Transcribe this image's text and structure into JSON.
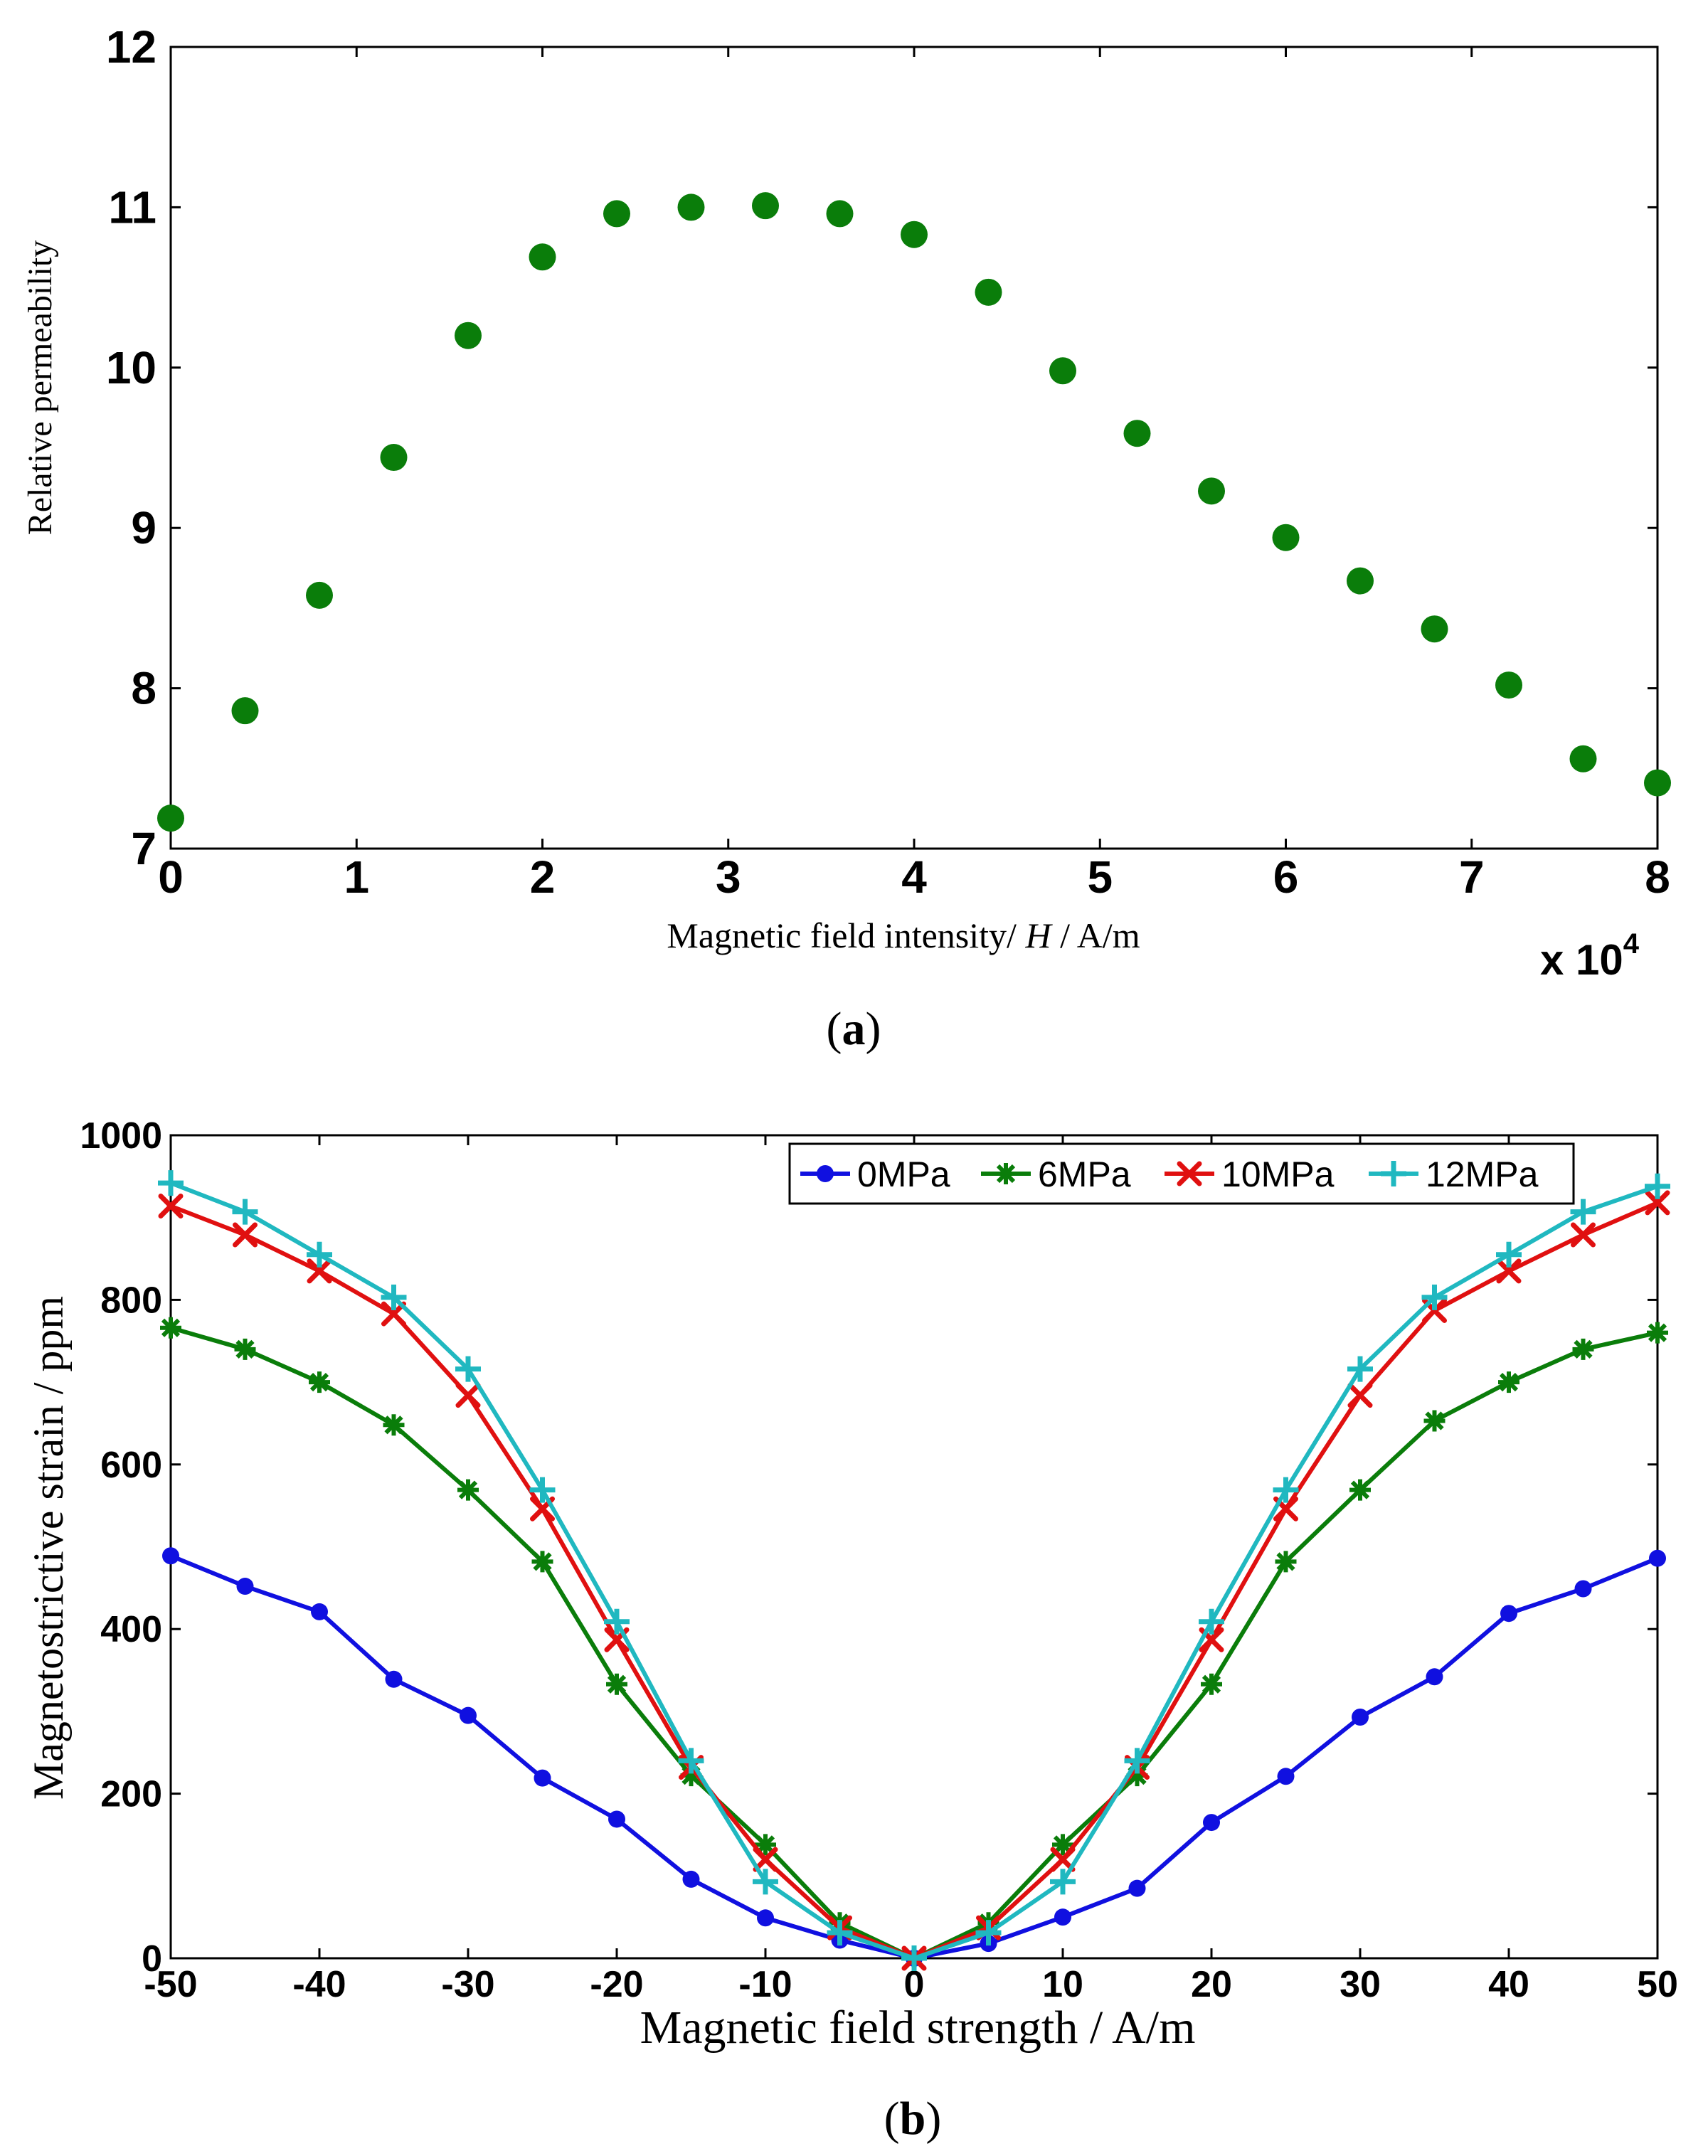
{
  "chart_data": [
    {
      "type": "scatter",
      "caption_letter": "a",
      "xlabel_prefix": "Magnetic field intensity/ ",
      "xlabel_var": "H",
      "xlabel_suffix": " / A/m",
      "ylabel": "Relative permeability",
      "x_multiplier_base": "x 10",
      "x_multiplier_exp": "4",
      "xlim": [
        0,
        8
      ],
      "ylim": [
        7,
        12
      ],
      "x_ticks": [
        "0",
        "1",
        "2",
        "3",
        "4",
        "5",
        "6",
        "7",
        "8"
      ],
      "y_ticks": [
        "7",
        "8",
        "9",
        "10",
        "11",
        "12"
      ],
      "marker_color": "#0a7d0a",
      "series": [
        {
          "name": "Relative permeability",
          "x": [
            0,
            0.4,
            0.8,
            1.2,
            1.6,
            2.0,
            2.4,
            2.8,
            3.2,
            3.6,
            4.0,
            4.4,
            4.8,
            5.2,
            5.6,
            6.0,
            6.4,
            6.8,
            7.2,
            7.6,
            8.0
          ],
          "y": [
            7.19,
            7.86,
            8.58,
            9.44,
            10.2,
            10.69,
            10.96,
            11.0,
            11.01,
            10.96,
            10.83,
            10.47,
            9.98,
            9.59,
            9.23,
            8.94,
            8.67,
            8.37,
            8.02,
            7.56,
            7.41
          ]
        }
      ]
    },
    {
      "type": "line",
      "caption_letter": "b",
      "xlabel": "Magnetic field strength / A/m",
      "ylabel": "Magnetostrictive strain / ppm",
      "xlim": [
        -50,
        50
      ],
      "ylim": [
        0,
        1000
      ],
      "x_ticks": [
        "-50",
        "-40",
        "-30",
        "-20",
        "-10",
        "0",
        "10",
        "20",
        "30",
        "40",
        "50"
      ],
      "y_ticks": [
        "0",
        "200",
        "400",
        "600",
        "800",
        "1000"
      ],
      "x": [
        -50,
        -45,
        -40,
        -35,
        -30,
        -25,
        -20,
        -15,
        -10,
        -5,
        0,
        5,
        10,
        15,
        20,
        25,
        30,
        35,
        40,
        45,
        50
      ],
      "legend_position": "top-right",
      "series": [
        {
          "name": "0MPa",
          "color": "#1010e0",
          "marker": "circle",
          "values": [
            489,
            452,
            421,
            339,
            295,
            219,
            169,
            96,
            49,
            22,
            0,
            18,
            50,
            85,
            165,
            221,
            293,
            342,
            419,
            449,
            486
          ]
        },
        {
          "name": "6MPa",
          "color": "#0a7d0a",
          "marker": "asterisk",
          "values": [
            766,
            740,
            700,
            648,
            569,
            482,
            333,
            222,
            138,
            43,
            0,
            43,
            138,
            222,
            333,
            482,
            569,
            653,
            700,
            740,
            760
          ]
        },
        {
          "name": "10MPa",
          "color": "#e01010",
          "marker": "x",
          "values": [
            914,
            879,
            835,
            783,
            684,
            546,
            387,
            232,
            120,
            37,
            0,
            37,
            120,
            232,
            387,
            546,
            684,
            787,
            835,
            879,
            918
          ]
        },
        {
          "name": "12MPa",
          "color": "#20b8c0",
          "marker": "plus",
          "values": [
            942,
            907,
            855,
            803,
            716,
            569,
            409,
            240,
            93,
            31,
            0,
            31,
            93,
            240,
            409,
            569,
            716,
            803,
            855,
            907,
            938
          ]
        }
      ]
    }
  ]
}
